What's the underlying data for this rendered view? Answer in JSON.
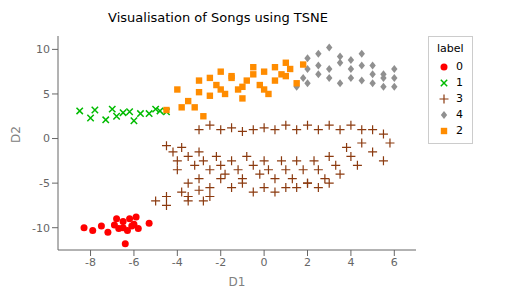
{
  "chart_data": {
    "type": "scatter",
    "title": "Visualisation of Songs using TSNE",
    "xlabel": "D1",
    "ylabel": "D2",
    "xlim": [
      -9.5,
      7
    ],
    "ylim": [
      -12.5,
      11.5
    ],
    "xticks": [
      -8,
      -6,
      -4,
      -2,
      0,
      2,
      4,
      6
    ],
    "yticks": [
      -10,
      -5,
      0,
      5,
      10
    ],
    "grid": false,
    "legend": "upper right",
    "legend_title": "label",
    "series": [
      {
        "name": "0",
        "color": "#ff0000",
        "marker": "circle",
        "values": [
          [
            -8.3,
            -10.0
          ],
          [
            -7.9,
            -10.3
          ],
          [
            -7.5,
            -9.8
          ],
          [
            -7.2,
            -10.5
          ],
          [
            -6.9,
            -9.7
          ],
          [
            -6.7,
            -10.1
          ],
          [
            -6.5,
            -10.0
          ],
          [
            -6.3,
            -10.3
          ],
          [
            -6.8,
            -9.0
          ],
          [
            -6.5,
            -9.3
          ],
          [
            -6.2,
            -9.0
          ],
          [
            -6.0,
            -9.6
          ],
          [
            -5.9,
            -8.8
          ],
          [
            -6.1,
            -9.8
          ],
          [
            -5.8,
            -10.1
          ],
          [
            -6.4,
            -11.8
          ],
          [
            -5.3,
            -9.5
          ]
        ]
      },
      {
        "name": "1",
        "color": "#00bb00",
        "marker": "x",
        "values": [
          [
            -8.5,
            3.1
          ],
          [
            -8.0,
            2.3
          ],
          [
            -7.8,
            3.2
          ],
          [
            -7.3,
            2.1
          ],
          [
            -7.0,
            3.3
          ],
          [
            -6.8,
            2.5
          ],
          [
            -6.5,
            2.9
          ],
          [
            -6.2,
            3.0
          ],
          [
            -6.0,
            2.0
          ],
          [
            -5.7,
            2.8
          ],
          [
            -5.3,
            2.8
          ],
          [
            -5.0,
            3.3
          ],
          [
            -4.8,
            3.1
          ],
          [
            -4.5,
            3.0
          ]
        ]
      },
      {
        "name": "3",
        "color": "#8B3A0F",
        "marker": "plus",
        "values": [
          [
            -4.5,
            -0.8
          ],
          [
            -4.2,
            -1.5
          ],
          [
            -4.0,
            -2.5
          ],
          [
            -3.8,
            -1.0
          ],
          [
            -3.5,
            -2.0
          ],
          [
            -3.2,
            -3.0
          ],
          [
            -3.0,
            -1.5
          ],
          [
            -2.8,
            -2.5
          ],
          [
            -2.5,
            -3.5
          ],
          [
            -2.2,
            -2.0
          ],
          [
            -2.0,
            -3.0
          ],
          [
            -1.8,
            -4.0
          ],
          [
            -1.5,
            -2.5
          ],
          [
            -1.2,
            -3.5
          ],
          [
            -1.0,
            -4.5
          ],
          [
            -0.8,
            -2.0
          ],
          [
            -0.5,
            -3.0
          ],
          [
            -0.2,
            -4.0
          ],
          [
            0.0,
            -2.5
          ],
          [
            0.2,
            -3.5
          ],
          [
            0.5,
            -4.5
          ],
          [
            0.8,
            -2.5
          ],
          [
            1.0,
            -3.5
          ],
          [
            1.3,
            -4.5
          ],
          [
            1.5,
            -2.5
          ],
          [
            1.8,
            -3.5
          ],
          [
            2.0,
            -5.0
          ],
          [
            2.3,
            -2.5
          ],
          [
            2.5,
            -3.5
          ],
          [
            2.8,
            -4.5
          ],
          [
            3.0,
            -2.0
          ],
          [
            3.3,
            -3.0
          ],
          [
            3.5,
            -4.0
          ],
          [
            3.8,
            -1.0
          ],
          [
            4.0,
            -2.0
          ],
          [
            4.3,
            -3.0
          ],
          [
            4.5,
            -0.5
          ],
          [
            5.0,
            -1.5
          ],
          [
            5.5,
            -2.5
          ],
          [
            -4.0,
            -3.5
          ],
          [
            -3.5,
            -5.0
          ],
          [
            -3.0,
            -4.5
          ],
          [
            -2.5,
            -5.5
          ],
          [
            -2.0,
            -4.5
          ],
          [
            -1.5,
            -5.5
          ],
          [
            -1.0,
            -5.0
          ],
          [
            -0.5,
            -6.0
          ],
          [
            0.0,
            -5.5
          ],
          [
            0.5,
            -6.0
          ],
          [
            1.0,
            -5.5
          ],
          [
            1.5,
            -5.5
          ],
          [
            2.0,
            -5.0
          ],
          [
            2.5,
            -5.5
          ],
          [
            3.0,
            -5.0
          ],
          [
            -3.8,
            -6.0
          ],
          [
            -3.5,
            -6.5
          ],
          [
            -3.0,
            -5.8
          ],
          [
            -4.5,
            -6.5
          ],
          [
            -5.0,
            -7.0
          ],
          [
            -4.5,
            -7.5
          ],
          [
            -3.5,
            -7.0
          ],
          [
            -2.8,
            -7.0
          ],
          [
            -2.5,
            -6.5
          ],
          [
            1.5,
            1.0
          ],
          [
            2.0,
            1.5
          ],
          [
            2.5,
            1.0
          ],
          [
            3.0,
            1.5
          ],
          [
            3.5,
            1.0
          ],
          [
            4.0,
            1.5
          ],
          [
            4.5,
            1.0
          ],
          [
            5.0,
            1.0
          ],
          [
            5.5,
            0.5
          ],
          [
            -3.0,
            1.0
          ],
          [
            -2.5,
            1.5
          ],
          [
            -2.0,
            1.0
          ],
          [
            -1.5,
            1.2
          ],
          [
            -1.0,
            0.8
          ],
          [
            -0.5,
            1.0
          ],
          [
            0.0,
            1.2
          ],
          [
            0.5,
            1.0
          ],
          [
            1.0,
            1.5
          ],
          [
            5.8,
            -0.5
          ]
        ]
      },
      {
        "name": "4",
        "color": "#909090",
        "marker": "diamond",
        "values": [
          [
            2.0,
            9.0
          ],
          [
            2.5,
            9.5
          ],
          [
            3.0,
            10.2
          ],
          [
            3.5,
            9.2
          ],
          [
            4.0,
            8.8
          ],
          [
            4.5,
            9.5
          ],
          [
            5.0,
            8.2
          ],
          [
            5.5,
            7.2
          ],
          [
            6.0,
            6.8
          ],
          [
            2.0,
            7.8
          ],
          [
            2.5,
            8.2
          ],
          [
            3.0,
            7.8
          ],
          [
            3.5,
            8.5
          ],
          [
            4.0,
            7.8
          ],
          [
            4.5,
            8.2
          ],
          [
            5.0,
            7.2
          ],
          [
            5.5,
            6.8
          ],
          [
            6.0,
            7.8
          ],
          [
            1.8,
            6.8
          ],
          [
            2.0,
            6.2
          ],
          [
            2.5,
            7.2
          ],
          [
            3.0,
            6.8
          ],
          [
            3.5,
            6.2
          ],
          [
            4.0,
            6.8
          ],
          [
            4.5,
            6.5
          ],
          [
            5.0,
            6.2
          ],
          [
            5.5,
            5.8
          ],
          [
            6.0,
            5.8
          ],
          [
            1.5,
            5.8
          ]
        ]
      },
      {
        "name": "2",
        "color": "#ff8c00",
        "marker": "square",
        "values": [
          [
            -4.5,
            3.2
          ],
          [
            -4.0,
            5.5
          ],
          [
            -3.8,
            3.5
          ],
          [
            -3.5,
            4.2
          ],
          [
            -3.2,
            3.5
          ],
          [
            -3.0,
            5.2
          ],
          [
            -2.8,
            2.5
          ],
          [
            -2.5,
            4.8
          ],
          [
            -2.2,
            6.0
          ],
          [
            -2.0,
            5.5
          ],
          [
            -1.8,
            5.0
          ],
          [
            -1.5,
            7.0
          ],
          [
            -1.2,
            5.5
          ],
          [
            -1.0,
            5.8
          ],
          [
            -0.8,
            6.5
          ],
          [
            -0.5,
            7.2
          ],
          [
            -0.2,
            6.0
          ],
          [
            0.0,
            7.5
          ],
          [
            0.2,
            5.0
          ],
          [
            0.5,
            6.5
          ],
          [
            0.8,
            7.2
          ],
          [
            1.0,
            7.0
          ],
          [
            1.2,
            7.8
          ],
          [
            1.5,
            6.2
          ],
          [
            1.8,
            8.3
          ],
          [
            -2.0,
            7.5
          ],
          [
            -1.5,
            6.8
          ],
          [
            -0.5,
            8.0
          ],
          [
            0.5,
            8.0
          ],
          [
            1.0,
            8.5
          ],
          [
            -2.5,
            6.8
          ],
          [
            -3.0,
            6.5
          ],
          [
            -1.0,
            4.5
          ],
          [
            0.0,
            5.5
          ]
        ]
      }
    ]
  }
}
